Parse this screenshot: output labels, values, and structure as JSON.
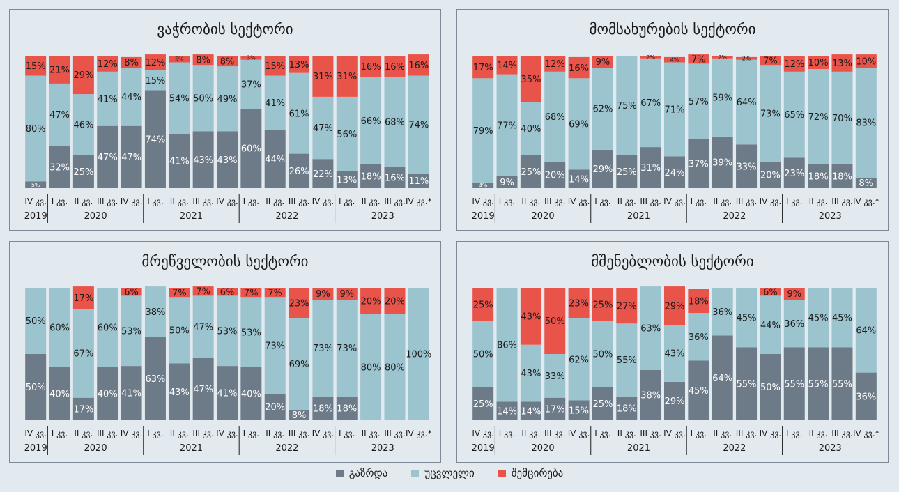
{
  "colors": {
    "increase": "#6d7a88",
    "unchanged": "#9cc4cf",
    "decrease": "#e8534a"
  },
  "legend": {
    "increase": "გაზრდა",
    "unchanged": "უცვლელი",
    "decrease": "შემცირება"
  },
  "chart_data": [
    {
      "type": "bar",
      "stacked": true,
      "title": "ვაჭრობის სექტორი",
      "categories": [
        "IV კვ.",
        "I კვ.",
        "II კვ.",
        "III კვ.",
        "IV კვ.",
        "I კვ.",
        "II კვ.",
        "III კვ.",
        "IV კვ.",
        "I კვ.",
        "II კვ.",
        "III კვ.",
        "IV კვ.",
        "I კვ.",
        "II კვ.",
        "III კვ.",
        "IV კვ.*"
      ],
      "years": [
        {
          "label": "2019",
          "start": 0,
          "end": 0
        },
        {
          "label": "2020",
          "start": 1,
          "end": 4
        },
        {
          "label": "2021",
          "start": 5,
          "end": 8
        },
        {
          "label": "2022",
          "start": 9,
          "end": 12
        },
        {
          "label": "2023",
          "start": 13,
          "end": 16
        }
      ],
      "series": [
        {
          "key": "increase",
          "values": [
            5,
            32,
            25,
            47,
            47,
            74,
            41,
            43,
            43,
            60,
            44,
            26,
            22,
            13,
            18,
            16,
            11
          ]
        },
        {
          "key": "unchanged",
          "values": [
            80,
            47,
            46,
            41,
            44,
            15,
            54,
            50,
            49,
            37,
            41,
            61,
            47,
            56,
            66,
            68,
            74
          ]
        },
        {
          "key": "decrease",
          "values": [
            15,
            21,
            29,
            12,
            8,
            12,
            5,
            8,
            8,
            3,
            15,
            13,
            31,
            31,
            16,
            16,
            16
          ]
        }
      ],
      "ylim": [
        0,
        100
      ]
    },
    {
      "type": "bar",
      "stacked": true,
      "title": "მომსახურების სექტორი",
      "categories": [
        "IV კვ.",
        "I კვ.",
        "II კვ.",
        "III კვ.",
        "IV კვ.",
        "I კვ.",
        "II კვ.",
        "III კვ.",
        "IV კვ.",
        "I კვ.",
        "II კვ.",
        "III კვ.",
        "IV კვ.",
        "I კვ.",
        "II კვ.",
        "III კვ.",
        "IV კვ.*"
      ],
      "years": [
        {
          "label": "2019",
          "start": 0,
          "end": 0
        },
        {
          "label": "2020",
          "start": 1,
          "end": 4
        },
        {
          "label": "2021",
          "start": 5,
          "end": 8
        },
        {
          "label": "2022",
          "start": 9,
          "end": 12
        },
        {
          "label": "2023",
          "start": 13,
          "end": 16
        }
      ],
      "series": [
        {
          "key": "increase",
          "values": [
            4,
            9,
            25,
            20,
            14,
            29,
            25,
            31,
            24,
            37,
            39,
            33,
            20,
            23,
            18,
            18,
            8
          ]
        },
        {
          "key": "unchanged",
          "values": [
            79,
            77,
            40,
            68,
            69,
            62,
            75,
            67,
            71,
            57,
            59,
            64,
            73,
            65,
            72,
            70,
            83
          ]
        },
        {
          "key": "decrease",
          "values": [
            17,
            14,
            35,
            12,
            16,
            9,
            0,
            2,
            4,
            7,
            2,
            2,
            7,
            12,
            10,
            13,
            10
          ]
        }
      ],
      "ylim": [
        0,
        100
      ]
    },
    {
      "type": "bar",
      "stacked": true,
      "title": "მრეწველობის სექტორი",
      "categories": [
        "IV კვ.",
        "I კვ.",
        "II კვ.",
        "III კვ.",
        "IV კვ.",
        "I კვ.",
        "II კვ.",
        "III კვ.",
        "IV კვ.",
        "I კვ.",
        "II კვ.",
        "III კვ.",
        "IV კვ.",
        "I კვ.",
        "II კვ.",
        "III კვ.",
        "IV კვ.*"
      ],
      "years": [
        {
          "label": "2019",
          "start": 0,
          "end": 0
        },
        {
          "label": "2020",
          "start": 1,
          "end": 4
        },
        {
          "label": "2021",
          "start": 5,
          "end": 8
        },
        {
          "label": "2022",
          "start": 9,
          "end": 12
        },
        {
          "label": "2023",
          "start": 13,
          "end": 16
        }
      ],
      "series": [
        {
          "key": "increase",
          "values": [
            50,
            40,
            17,
            40,
            41,
            63,
            43,
            47,
            41,
            40,
            20,
            8,
            18,
            18,
            0,
            0,
            0
          ]
        },
        {
          "key": "unchanged",
          "values": [
            50,
            60,
            67,
            60,
            53,
            38,
            50,
            47,
            53,
            53,
            73,
            69,
            73,
            73,
            80,
            80,
            100
          ]
        },
        {
          "key": "decrease",
          "values": [
            0,
            0,
            17,
            0,
            6,
            0,
            7,
            7,
            6,
            7,
            7,
            23,
            9,
            9,
            20,
            20,
            0
          ]
        }
      ],
      "ylim": [
        0,
        100
      ]
    },
    {
      "type": "bar",
      "stacked": true,
      "title": "მშენებლობის სექტორი",
      "categories": [
        "IV კვ.",
        "I კვ.",
        "II კვ.",
        "III კვ.",
        "IV კვ.",
        "I კვ.",
        "II კვ.",
        "III კვ.",
        "IV კვ.",
        "I კვ.",
        "II კვ.",
        "III კვ.",
        "IV კვ.",
        "I კვ.",
        "II კვ.",
        "III კვ.",
        "IV კვ.*"
      ],
      "years": [
        {
          "label": "2019",
          "start": 0,
          "end": 0
        },
        {
          "label": "2020",
          "start": 1,
          "end": 4
        },
        {
          "label": "2021",
          "start": 5,
          "end": 8
        },
        {
          "label": "2022",
          "start": 9,
          "end": 12
        },
        {
          "label": "2023",
          "start": 13,
          "end": 16
        }
      ],
      "series": [
        {
          "key": "increase",
          "values": [
            25,
            14,
            14,
            17,
            15,
            25,
            18,
            38,
            29,
            45,
            64,
            55,
            50,
            55,
            55,
            55,
            36
          ]
        },
        {
          "key": "unchanged",
          "values": [
            50,
            86,
            43,
            33,
            62,
            50,
            55,
            63,
            43,
            36,
            36,
            45,
            44,
            36,
            45,
            45,
            64
          ]
        },
        {
          "key": "decrease",
          "values": [
            25,
            0,
            43,
            50,
            23,
            25,
            27,
            0,
            29,
            18,
            0,
            0,
            6,
            9,
            0,
            0,
            0
          ]
        }
      ],
      "ylim": [
        0,
        100
      ]
    }
  ]
}
